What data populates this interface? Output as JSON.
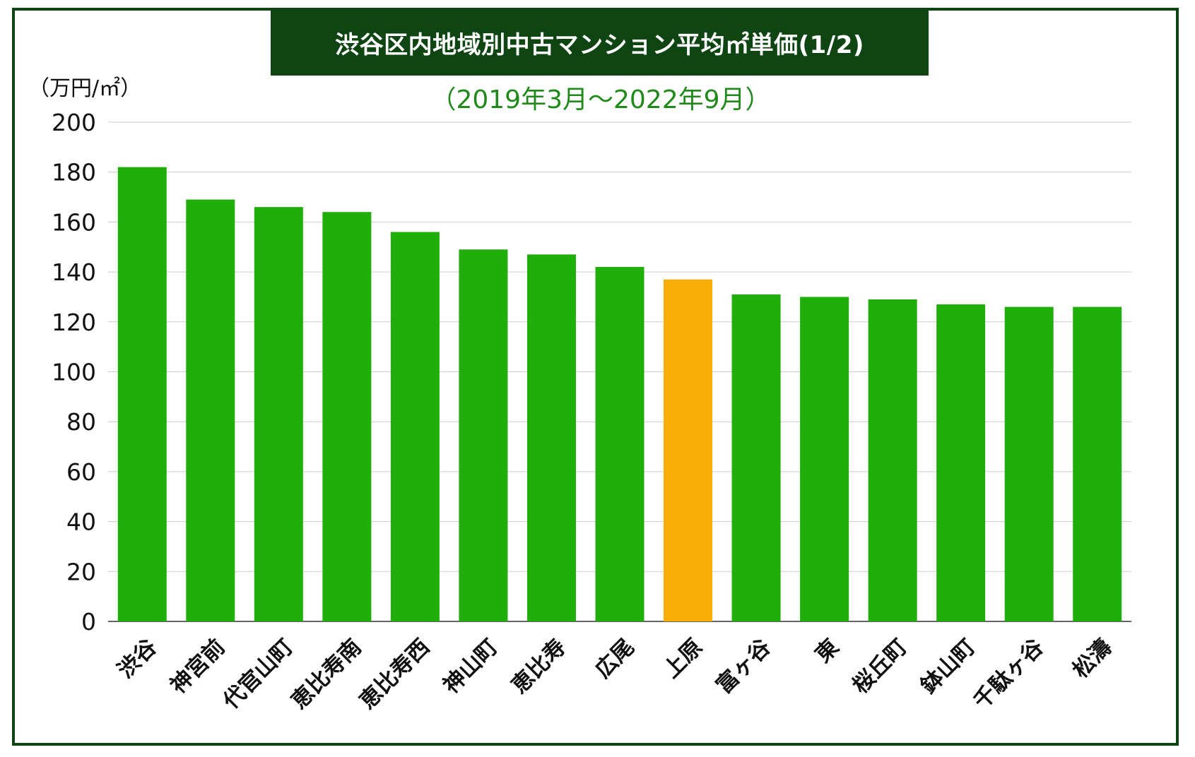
{
  "title": "渋谷区内地域別中古マンション平均㎡単価(1/2)",
  "subtitle": "（2019年3月〜2022年9月）",
  "unit_label": "（万円/㎡）",
  "colors": {
    "bar": "#1fae0a",
    "highlight": "#f9ae07",
    "frame": "#0f4512",
    "subtitle": "#1f8a1a",
    "grid": "#cccccc"
  },
  "chart_data": {
    "type": "bar",
    "title": "渋谷区内地域別中古マンション平均㎡単価(1/2)",
    "subtitle": "（2019年3月〜2022年9月）",
    "ylabel": "（万円/㎡）",
    "xlabel": "",
    "ylim": [
      0,
      200
    ],
    "yticks": [
      0,
      20,
      40,
      60,
      80,
      100,
      120,
      140,
      160,
      180,
      200
    ],
    "grid": true,
    "categories": [
      "渋谷",
      "神宮前",
      "代官山町",
      "恵比寿南",
      "恵比寿西",
      "神山町",
      "恵比寿",
      "広尾",
      "上原",
      "富ヶ谷",
      "東",
      "桜丘町",
      "鉢山町",
      "千駄ヶ谷",
      "松濤"
    ],
    "values": [
      182,
      169,
      166,
      164,
      156,
      149,
      147,
      142,
      137,
      131,
      130,
      129,
      127,
      126,
      126
    ],
    "highlight_category": "上原"
  }
}
